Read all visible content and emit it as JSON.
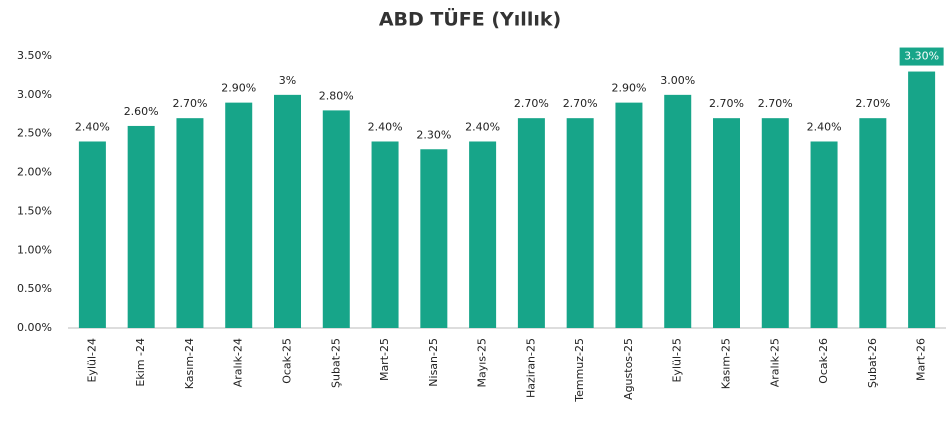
{
  "chart_data": {
    "type": "bar",
    "title": "ABD TÜFE (Yıllık)",
    "categories": [
      "Eylül-24",
      "Ekim -24",
      "Kasım-24",
      "Aralık-24",
      "Ocak-25",
      "Şubat-25",
      "Mart-25",
      "Nisan-25",
      "Mayıs-25",
      "Haziran-25",
      "Temmuz-25",
      "Agustos-25",
      "Eylül-25",
      "Kasım-25",
      "Aralık-25",
      "Ocak-26",
      "Şubat-26",
      "Mart-26"
    ],
    "values": [
      2.4,
      2.6,
      2.7,
      2.9,
      3,
      2.8,
      2.4,
      2.3,
      2.4,
      2.7,
      2.7,
      2.9,
      3.0,
      2.7,
      2.7,
      2.4,
      2.7,
      3.3
    ],
    "value_labels": [
      "2.40%",
      "2.60%",
      "2.70%",
      "2.90%",
      "3%",
      "2.80%",
      "2.40%",
      "2.30%",
      "2.40%",
      "2.70%",
      "2.70%",
      "2.90%",
      "3.00%",
      "2.70%",
      "2.70%",
      "2.40%",
      "2.70%",
      "3.30%"
    ],
    "color": "#17a589",
    "ylim": [
      0,
      3.5
    ],
    "yticks": [
      {
        "value": 0,
        "label": "0.00%"
      },
      {
        "value": 0.5,
        "label": "0.50%"
      },
      {
        "value": 1,
        "label": "1.00%"
      },
      {
        "value": 1.5,
        "label": "1.50%"
      },
      {
        "value": 2,
        "label": "2.00%"
      },
      {
        "value": 2.5,
        "label": "2.50%"
      },
      {
        "value": 3,
        "label": "3.00%"
      },
      {
        "value": 3.5,
        "label": "3.50%"
      }
    ],
    "grid": false
  }
}
